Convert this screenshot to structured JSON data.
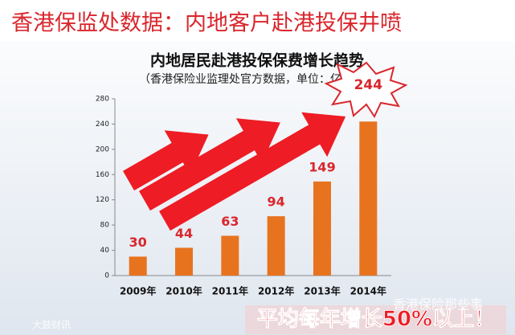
{
  "banner": "香港保监处数据：内地客户赴港投保井喷",
  "chart_data": {
    "type": "bar",
    "title": "内地居民赴港投保保费增长趋势",
    "subtitle": "（香港保险业监理处官方数据，单位：亿港元）",
    "categories": [
      "2009年",
      "2010年",
      "2011年",
      "2012年",
      "2013年",
      "2014年"
    ],
    "values": [
      30,
      44,
      63,
      94,
      149,
      244
    ],
    "color": "#e8731f",
    "label_color": "#d9262c",
    "ylim": [
      0,
      280
    ],
    "yticks": [
      0,
      40,
      80,
      120,
      160,
      200,
      240,
      280
    ],
    "grid": false,
    "annotation": "平均每年增长50%以上！"
  },
  "watermarks": [
    "香港保险那些事",
    "大鼓财讯"
  ]
}
